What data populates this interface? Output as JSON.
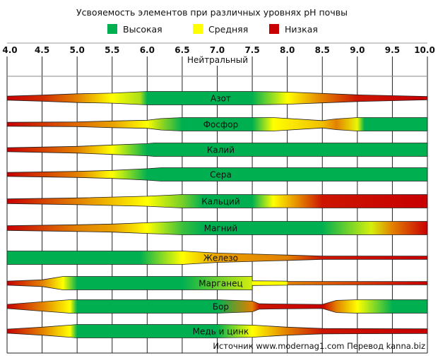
{
  "chart_data": {
    "type": "bar",
    "title": "Усвояемость элементов при различных уровнях pH  почвы",
    "legend": [
      {
        "label": "Высокая",
        "color": "#00b050",
        "level": 1
      },
      {
        "label": "Средняя",
        "color": "#ffff00",
        "level": 0.5
      },
      {
        "label": "Низкая",
        "color": "#c80000",
        "level": 0
      }
    ],
    "legend_placement": "top",
    "x_ticks": [
      "4.0",
      "4.5",
      "5.0",
      "5.5",
      "6.0",
      "6.5",
      "7.0",
      "7.5",
      "8.0",
      "8.5",
      "9.0",
      "9.5",
      "10.0"
    ],
    "xlim": [
      4.0,
      10.0
    ],
    "neutral_label": "Нейтральный",
    "grid": true,
    "encoding_note_fields": [
      "ph",
      "thickness",
      "availability"
    ],
    "series": [
      {
        "name": "Азот",
        "profile": [
          [
            4.0,
            0.3,
            0
          ],
          [
            4.5,
            0.45,
            0.1
          ],
          [
            5.0,
            0.65,
            0.3
          ],
          [
            5.5,
            0.75,
            0.5
          ],
          [
            5.9,
            0.95,
            0.7
          ],
          [
            6.0,
            1,
            1
          ],
          [
            7.5,
            1,
            1
          ],
          [
            8.0,
            0.9,
            0.5
          ],
          [
            8.5,
            0.7,
            0.3
          ],
          [
            9.0,
            0.5,
            0.05
          ],
          [
            10.0,
            0.25,
            0
          ]
        ]
      },
      {
        "name": "Фосфор",
        "profile": [
          [
            4.0,
            0.3,
            0
          ],
          [
            5.0,
            0.35,
            0.25
          ],
          [
            5.5,
            0.5,
            0.35
          ],
          [
            6.0,
            0.6,
            0.5
          ],
          [
            6.2,
            0.85,
            0.75
          ],
          [
            6.5,
            1,
            1
          ],
          [
            7.5,
            1,
            1
          ],
          [
            7.8,
            1,
            0.5
          ],
          [
            8.5,
            0.55,
            0.4
          ],
          [
            8.7,
            0.8,
            0.3
          ],
          [
            9.0,
            1,
            0.55
          ],
          [
            9.1,
            1,
            1
          ],
          [
            10.0,
            1,
            1
          ]
        ]
      },
      {
        "name": "Калий",
        "profile": [
          [
            4.0,
            0.3,
            0
          ],
          [
            5.0,
            0.5,
            0.3
          ],
          [
            5.5,
            0.7,
            0.5
          ],
          [
            6.0,
            0.9,
            1
          ],
          [
            6.1,
            1,
            1
          ],
          [
            10.0,
            1,
            1
          ]
        ]
      },
      {
        "name": "Сера",
        "profile": [
          [
            4.0,
            0.3,
            0
          ],
          [
            5.0,
            0.45,
            0.3
          ],
          [
            5.5,
            0.6,
            0.5
          ],
          [
            6.0,
            0.85,
            1
          ],
          [
            6.2,
            1,
            1
          ],
          [
            10.0,
            1,
            1
          ]
        ]
      },
      {
        "name": "Кальций",
        "profile": [
          [
            4.0,
            0.35,
            0
          ],
          [
            5.0,
            0.5,
            0.3
          ],
          [
            6.0,
            0.75,
            0.5
          ],
          [
            6.5,
            1,
            0.8
          ],
          [
            6.8,
            1,
            1
          ],
          [
            7.5,
            1,
            1
          ],
          [
            7.8,
            0.95,
            0.5
          ],
          [
            8.5,
            1,
            0.05
          ],
          [
            10.0,
            1,
            0
          ]
        ]
      },
      {
        "name": "Магний",
        "profile": [
          [
            4.0,
            0.35,
            0
          ],
          [
            5.0,
            0.5,
            0.3
          ],
          [
            5.5,
            0.6,
            0.35
          ],
          [
            6.0,
            0.8,
            0.5
          ],
          [
            6.5,
            1,
            0.9
          ],
          [
            6.8,
            1,
            1
          ],
          [
            8.5,
            1,
            1
          ],
          [
            9.2,
            1,
            0.6
          ],
          [
            9.5,
            1,
            0.3
          ],
          [
            10.0,
            1,
            0
          ]
        ]
      },
      {
        "name": "Железо",
        "profile": [
          [
            4.0,
            1,
            1
          ],
          [
            5.9,
            1,
            1
          ],
          [
            6.5,
            1,
            0.5
          ],
          [
            7.0,
            0.7,
            0.35
          ],
          [
            8.0,
            0.4,
            0.3
          ],
          [
            8.5,
            0.25,
            0.05
          ],
          [
            10.0,
            0.25,
            0
          ]
        ]
      },
      {
        "name": "Марганец",
        "profile": [
          [
            4.0,
            0.3,
            0
          ],
          [
            4.5,
            0.5,
            0.3
          ],
          [
            4.8,
            1,
            0.5
          ],
          [
            5.0,
            1,
            1
          ],
          [
            6.5,
            1,
            1
          ],
          [
            7.5,
            1,
            0.6
          ],
          [
            7.5,
            0.35,
            0.5
          ],
          [
            8.0,
            0.3,
            0.5
          ],
          [
            8.0,
            0.25,
            0.3
          ],
          [
            10.0,
            0.25,
            0
          ]
        ]
      },
      {
        "name": "Бор",
        "profile": [
          [
            4.0,
            0.3,
            0
          ],
          [
            4.5,
            0.7,
            0.3
          ],
          [
            4.9,
            1,
            0.5
          ],
          [
            5.0,
            1,
            1
          ],
          [
            7.0,
            1,
            1
          ],
          [
            7.5,
            0.8,
            0.3
          ],
          [
            7.6,
            0.4,
            0.05
          ],
          [
            8.5,
            0.3,
            0
          ],
          [
            8.7,
            0.9,
            0.3
          ],
          [
            9.0,
            1,
            0.5
          ],
          [
            9.5,
            1,
            1
          ],
          [
            10.0,
            1,
            1
          ]
        ]
      },
      {
        "name": "Медь и цинк",
        "profile": [
          [
            4.0,
            0.3,
            0
          ],
          [
            4.5,
            0.6,
            0.3
          ],
          [
            4.9,
            0.9,
            0.5
          ],
          [
            5.0,
            1,
            1
          ],
          [
            7.0,
            1,
            1
          ],
          [
            7.5,
            0.9,
            0.5
          ],
          [
            8.0,
            0.6,
            0.3
          ],
          [
            8.5,
            0.4,
            0.05
          ],
          [
            10.0,
            0.35,
            0
          ]
        ]
      }
    ]
  },
  "source": "Источник www.modernag1.com Перевод kanna.biz"
}
